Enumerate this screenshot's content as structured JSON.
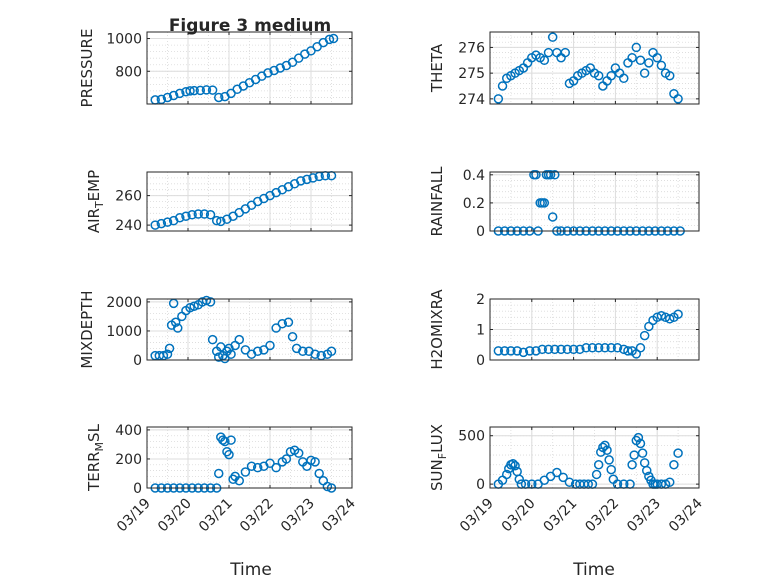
{
  "figure_title": "Figure 3 medium",
  "x_label": "Time",
  "x_ticks": [
    "03/19",
    "03/20",
    "03/21",
    "03/22",
    "03/23",
    "03/24"
  ],
  "marker_color": "#0072BD",
  "chart_data": [
    {
      "id": "pressure",
      "type": "scatter",
      "title": "Figure 3 medium",
      "ylabel": [
        "PRESSURE"
      ],
      "xlim": [
        0,
        5
      ],
      "ylim": [
        600,
        1040
      ],
      "yticks": [
        800,
        1000
      ],
      "ytick_labels": [
        "800",
        "1000"
      ],
      "grid": true,
      "x": [
        0.2,
        0.35,
        0.5,
        0.65,
        0.8,
        0.95,
        1.05,
        1.15,
        1.3,
        1.45,
        1.6,
        1.75,
        1.9,
        2.05,
        2.2,
        2.35,
        2.5,
        2.65,
        2.8,
        2.95,
        3.1,
        3.25,
        3.4,
        3.55,
        3.7,
        3.85,
        4.0,
        4.15,
        4.3,
        4.45,
        4.55
      ],
      "y": [
        625,
        628,
        640,
        652,
        665,
        675,
        680,
        682,
        683,
        686,
        685,
        640,
        645,
        665,
        690,
        710,
        730,
        750,
        770,
        790,
        805,
        820,
        835,
        855,
        880,
        905,
        925,
        950,
        975,
        995,
        1000
      ]
    },
    {
      "id": "theta",
      "type": "scatter",
      "ylabel": [
        "THETA"
      ],
      "xlim": [
        0,
        5
      ],
      "ylim": [
        273.8,
        276.6
      ],
      "yticks": [
        274,
        275,
        276
      ],
      "ytick_labels": [
        "274",
        "275",
        "276"
      ],
      "grid": true,
      "x": [
        0.2,
        0.3,
        0.4,
        0.5,
        0.6,
        0.7,
        0.8,
        0.9,
        1.0,
        1.1,
        1.2,
        1.3,
        1.4,
        1.5,
        1.6,
        1.7,
        1.8,
        1.9,
        2.0,
        2.1,
        2.2,
        2.3,
        2.4,
        2.5,
        2.6,
        2.7,
        2.8,
        2.9,
        3.0,
        3.1,
        3.2,
        3.3,
        3.4,
        3.5,
        3.6,
        3.7,
        3.8,
        3.9,
        4.0,
        4.1,
        4.2,
        4.3,
        4.4,
        4.5
      ],
      "y": [
        274.0,
        274.5,
        274.8,
        274.9,
        275.0,
        275.1,
        275.2,
        275.4,
        275.6,
        275.7,
        275.6,
        275.5,
        275.8,
        276.4,
        275.8,
        275.6,
        275.8,
        274.6,
        274.7,
        274.9,
        275.0,
        275.1,
        275.2,
        275.0,
        274.9,
        274.5,
        274.7,
        274.9,
        275.2,
        275.0,
        274.8,
        275.4,
        275.6,
        276.0,
        275.5,
        275.0,
        275.4,
        275.8,
        275.6,
        275.3,
        275.0,
        274.9,
        274.2,
        274.0
      ]
    },
    {
      "id": "air_temp",
      "type": "scatter",
      "ylabel": [
        "AIR",
        "T",
        "EMP"
      ],
      "xlim": [
        0,
        5
      ],
      "ylim": [
        236,
        276
      ],
      "yticks": [
        240,
        260
      ],
      "ytick_labels": [
        "240",
        "260"
      ],
      "grid": true,
      "x": [
        0.2,
        0.35,
        0.5,
        0.65,
        0.8,
        0.95,
        1.1,
        1.25,
        1.4,
        1.55,
        1.7,
        1.8,
        1.95,
        2.1,
        2.25,
        2.4,
        2.55,
        2.7,
        2.85,
        3.0,
        3.15,
        3.3,
        3.45,
        3.6,
        3.75,
        3.9,
        4.05,
        4.2,
        4.35,
        4.5
      ],
      "y": [
        240,
        241,
        242,
        243,
        245,
        246,
        247,
        247.5,
        247.5,
        247,
        243,
        242.5,
        244,
        246,
        248.5,
        251,
        253.5,
        256,
        258,
        260,
        262,
        264,
        266,
        268,
        270,
        271,
        272,
        273,
        273.5,
        273.5
      ]
    },
    {
      "id": "rainfall",
      "type": "scatter",
      "ylabel": [
        "RAINFALL"
      ],
      "xlim": [
        0,
        5
      ],
      "ylim": [
        0,
        0.42
      ],
      "yticks": [
        0,
        0.2,
        0.4
      ],
      "ytick_labels": [
        "0",
        "0.2",
        "0.4"
      ],
      "grid": true,
      "x": [
        0.2,
        0.35,
        0.5,
        0.65,
        0.8,
        0.95,
        1.05,
        1.1,
        1.15,
        1.2,
        1.25,
        1.3,
        1.35,
        1.4,
        1.45,
        1.5,
        1.55,
        1.6,
        1.7,
        1.85,
        2.0,
        2.15,
        2.3,
        2.45,
        2.6,
        2.75,
        2.9,
        3.05,
        3.2,
        3.35,
        3.5,
        3.65,
        3.8,
        3.95,
        4.1,
        4.25,
        4.4,
        4.55
      ],
      "y": [
        0,
        0,
        0,
        0,
        0,
        0,
        0.4,
        0.4,
        0,
        0.2,
        0.2,
        0.2,
        0.4,
        0.4,
        0.4,
        0.1,
        0.4,
        0,
        0,
        0,
        0,
        0,
        0,
        0,
        0,
        0,
        0,
        0,
        0,
        0,
        0,
        0,
        0,
        0,
        0,
        0,
        0,
        0
      ]
    },
    {
      "id": "mixdepth",
      "type": "scatter",
      "ylabel": [
        "MIXDEPTH"
      ],
      "xlim": [
        0,
        5
      ],
      "ylim": [
        0,
        2100
      ],
      "yticks": [
        0,
        1000,
        2000
      ],
      "ytick_labels": [
        "0",
        "1000",
        "2000"
      ],
      "grid": true,
      "x": [
        0.2,
        0.3,
        0.4,
        0.5,
        0.55,
        0.6,
        0.65,
        0.7,
        0.75,
        0.85,
        0.95,
        1.05,
        1.15,
        1.25,
        1.35,
        1.45,
        1.55,
        1.6,
        1.7,
        1.75,
        1.8,
        1.85,
        1.9,
        1.95,
        2.0,
        2.05,
        2.15,
        2.25,
        2.4,
        2.55,
        2.7,
        2.85,
        3.0,
        3.15,
        3.3,
        3.45,
        3.55,
        3.65,
        3.8,
        3.95,
        4.1,
        4.25,
        4.4,
        4.5
      ],
      "y": [
        150,
        150,
        150,
        200,
        400,
        1200,
        1950,
        1300,
        1100,
        1500,
        1700,
        1800,
        1850,
        1900,
        2000,
        2050,
        2000,
        700,
        300,
        100,
        450,
        150,
        50,
        300,
        400,
        200,
        500,
        700,
        350,
        200,
        300,
        350,
        500,
        1100,
        1250,
        1300,
        800,
        400,
        300,
        300,
        200,
        150,
        200,
        300
      ]
    },
    {
      "id": "h2omixra",
      "type": "scatter",
      "ylabel": [
        "H2OMIXRA"
      ],
      "xlim": [
        0,
        5
      ],
      "ylim": [
        0,
        2
      ],
      "yticks": [
        0,
        1,
        2
      ],
      "ytick_labels": [
        "0",
        "1",
        "2"
      ],
      "grid": true,
      "x": [
        0.2,
        0.35,
        0.5,
        0.65,
        0.8,
        0.95,
        1.1,
        1.25,
        1.4,
        1.55,
        1.7,
        1.85,
        2.0,
        2.15,
        2.3,
        2.45,
        2.6,
        2.75,
        2.9,
        3.05,
        3.2,
        3.3,
        3.4,
        3.5,
        3.6,
        3.7,
        3.8,
        3.9,
        4.0,
        4.1,
        4.2,
        4.3,
        4.4,
        4.5
      ],
      "y": [
        0.3,
        0.3,
        0.3,
        0.3,
        0.25,
        0.3,
        0.3,
        0.35,
        0.35,
        0.35,
        0.35,
        0.35,
        0.35,
        0.35,
        0.4,
        0.4,
        0.4,
        0.4,
        0.4,
        0.4,
        0.35,
        0.3,
        0.3,
        0.2,
        0.4,
        0.8,
        1.1,
        1.3,
        1.4,
        1.45,
        1.4,
        1.35,
        1.4,
        1.5
      ]
    },
    {
      "id": "terr_msl",
      "type": "scatter",
      "ylabel": [
        "TERR",
        "M",
        "SL"
      ],
      "xlim": [
        0,
        5
      ],
      "ylim": [
        0,
        420
      ],
      "yticks": [
        0,
        200,
        400
      ],
      "ytick_labels": [
        "0",
        "200",
        "400"
      ],
      "grid": true,
      "x": [
        0.2,
        0.35,
        0.5,
        0.65,
        0.8,
        0.95,
        1.1,
        1.25,
        1.4,
        1.55,
        1.7,
        1.75,
        1.8,
        1.85,
        1.9,
        1.95,
        2.0,
        2.05,
        2.1,
        2.15,
        2.25,
        2.4,
        2.55,
        2.7,
        2.85,
        3.0,
        3.15,
        3.3,
        3.4,
        3.5,
        3.6,
        3.7,
        3.8,
        3.9,
        4.0,
        4.1,
        4.2,
        4.3,
        4.4,
        4.5
      ],
      "y": [
        0,
        0,
        0,
        0,
        0,
        0,
        0,
        0,
        0,
        0,
        0,
        100,
        350,
        330,
        320,
        250,
        230,
        330,
        60,
        80,
        50,
        110,
        150,
        140,
        150,
        170,
        140,
        180,
        200,
        250,
        260,
        240,
        180,
        150,
        190,
        180,
        100,
        50,
        10,
        0
      ]
    },
    {
      "id": "sun_flux",
      "type": "scatter",
      "ylabel": [
        "SUN",
        "F",
        "LUX"
      ],
      "xlim": [
        0,
        5
      ],
      "ylim": [
        -40,
        590
      ],
      "yticks": [
        0,
        500
      ],
      "ytick_labels": [
        "0",
        "500"
      ],
      "grid": true,
      "x": [
        0.2,
        0.3,
        0.4,
        0.45,
        0.5,
        0.55,
        0.6,
        0.65,
        0.7,
        0.75,
        0.85,
        1.0,
        1.15,
        1.3,
        1.45,
        1.6,
        1.75,
        1.9,
        2.05,
        2.15,
        2.25,
        2.35,
        2.45,
        2.55,
        2.6,
        2.65,
        2.7,
        2.75,
        2.8,
        2.85,
        2.9,
        2.95,
        3.05,
        3.2,
        3.35,
        3.4,
        3.45,
        3.5,
        3.55,
        3.6,
        3.65,
        3.7,
        3.75,
        3.8,
        3.85,
        3.9,
        3.95,
        4.0,
        4.1,
        4.2,
        4.3,
        4.4,
        4.5
      ],
      "y": [
        0,
        40,
        100,
        160,
        200,
        210,
        190,
        130,
        50,
        0,
        0,
        0,
        0,
        40,
        80,
        120,
        70,
        20,
        0,
        0,
        0,
        0,
        0,
        100,
        200,
        330,
        380,
        400,
        350,
        250,
        150,
        50,
        0,
        0,
        0,
        200,
        300,
        450,
        480,
        420,
        320,
        220,
        140,
        80,
        40,
        0,
        0,
        0,
        0,
        0,
        20,
        200,
        320
      ]
    }
  ]
}
